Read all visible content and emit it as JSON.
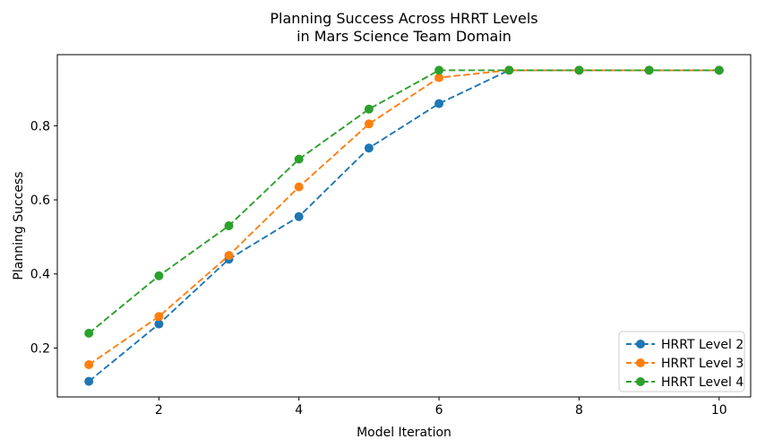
{
  "chart_data": {
    "type": "line",
    "title": "Planning Success Across HRRT Levels\nin Mars Science Team Domain",
    "title_lines": [
      "Planning Success Across HRRT Levels",
      "in Mars Science Team Domain"
    ],
    "xlabel": "Model Iteration",
    "ylabel": "Planning Success",
    "x": [
      1,
      2,
      3,
      4,
      5,
      6,
      7,
      8,
      9,
      10
    ],
    "series": [
      {
        "name": "HRRT Level 2",
        "color": "#1f77b4",
        "values": [
          0.11,
          0.265,
          0.44,
          0.555,
          0.74,
          0.86,
          0.95,
          0.95,
          0.95,
          0.95
        ]
      },
      {
        "name": "HRRT Level 3",
        "color": "#ff7f0e",
        "values": [
          0.155,
          0.285,
          0.45,
          0.635,
          0.805,
          0.93,
          0.95,
          0.95,
          0.95,
          0.95
        ]
      },
      {
        "name": "HRRT Level 4",
        "color": "#2ca02c",
        "values": [
          0.24,
          0.395,
          0.53,
          0.71,
          0.845,
          0.95,
          0.95,
          0.95,
          0.95,
          0.95
        ]
      }
    ],
    "xticks": [
      2,
      4,
      6,
      8,
      10
    ],
    "yticks": [
      0.2,
      0.4,
      0.6,
      0.8
    ],
    "xlim": [
      0.55,
      10.45
    ],
    "ylim": [
      0.068,
      0.992
    ],
    "grid": false,
    "line_style": "dashed",
    "marker": "circle",
    "legend_position": "lower right",
    "axis_color": "#000000",
    "background_color": "#ffffff",
    "legend_border_color": "#cccccc"
  }
}
